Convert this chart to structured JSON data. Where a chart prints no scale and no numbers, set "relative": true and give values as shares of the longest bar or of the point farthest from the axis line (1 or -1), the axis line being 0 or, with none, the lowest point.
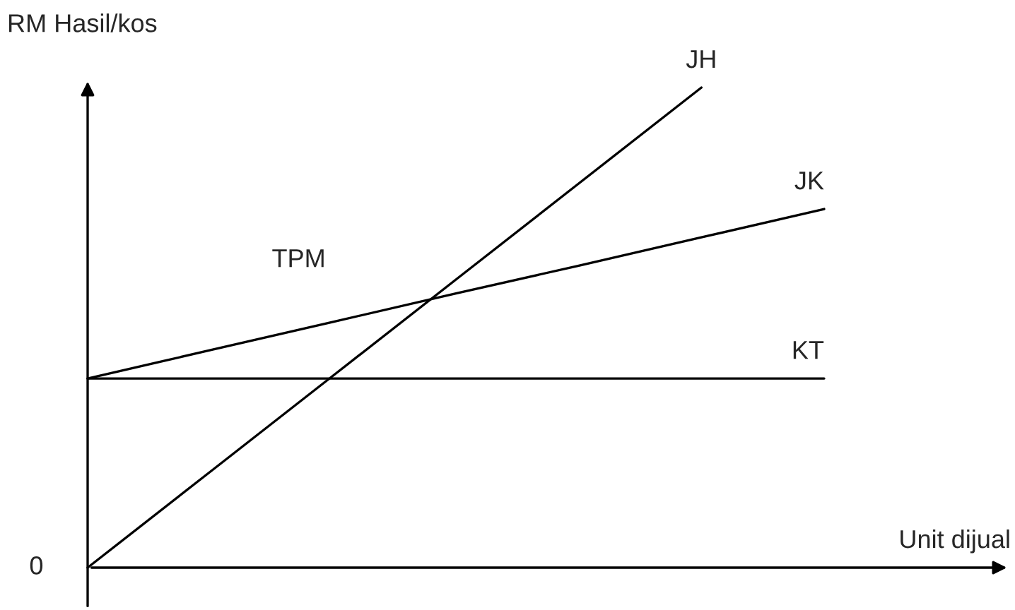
{
  "chart_data": {
    "type": "line",
    "relative": true,
    "ylabel": "RM Hasil/kos",
    "xlabel": "Unit dijual",
    "annotations": [
      "0",
      "TPM"
    ],
    "categories": [
      null,
      null,
      null,
      null,
      null,
      null,
      null
    ],
    "series": [
      {
        "name": "JH",
        "color": "#000000",
        "values": [
          0,
          0.2,
          0.4,
          0.6,
          0.8,
          1.0,
          null
        ]
      },
      {
        "name": "JK",
        "color": "#000000",
        "values": [
          0.394,
          0.453,
          0.512,
          0.571,
          0.629,
          0.688,
          0.747
        ]
      },
      {
        "name": "KT",
        "color": "#000000",
        "values": [
          0.394,
          0.394,
          0.394,
          0.394,
          0.394,
          0.394,
          0.394
        ]
      }
    ]
  }
}
